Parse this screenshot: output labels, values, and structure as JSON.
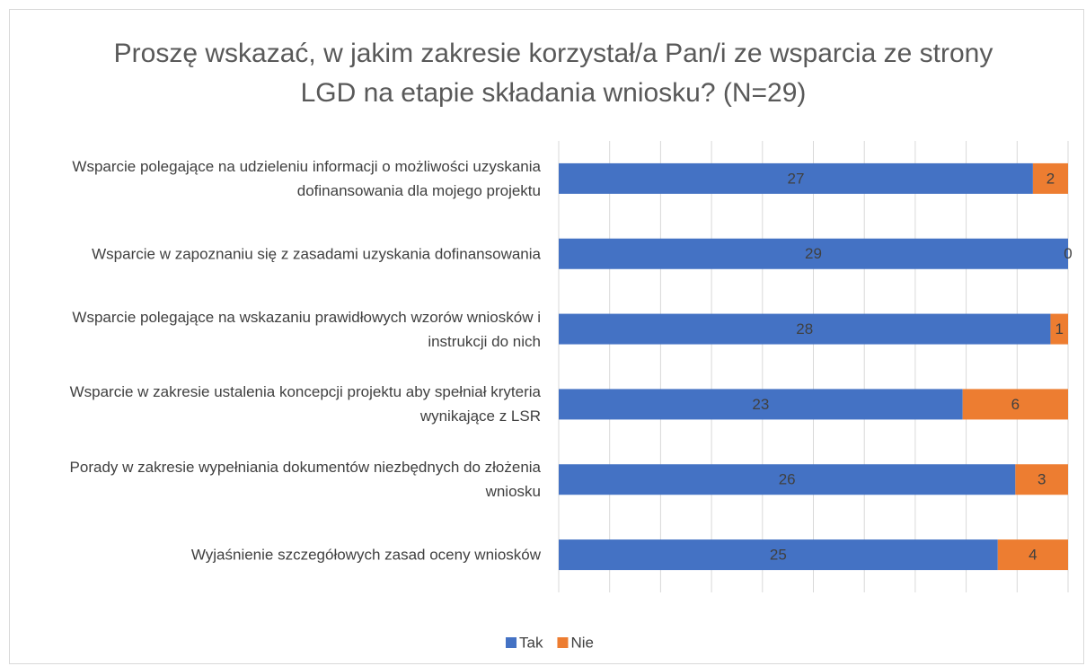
{
  "chart_data": {
    "type": "bar",
    "orientation": "horizontal",
    "stacking": "percent",
    "title": "Proszę wskazać, w jakim zakresie korzystał/a Pan/i ze wsparcia ze strony LGD na etapie składania wniosku? (N=29)",
    "categories": [
      "Wsparcie polegające na udzieleniu informacji o możliwości uzyskania dofinansowania dla mojego projektu",
      "Wsparcie w zapoznaniu się z zasadami uzyskania dofinansowania",
      "Wsparcie polegające na wskazaniu prawidłowych wzorów wniosków i instrukcji do nich",
      "Wsparcie w zakresie ustalenia koncepcji projektu aby spełniał kryteria wynikające z LSR",
      "Porady w zakresie wypełniania dokumentów niezbędnych do złożenia wniosku",
      "Wyjaśnienie szczegółowych zasad oceny wniosków"
    ],
    "series": [
      {
        "name": "Tak",
        "color": "#4472c4",
        "values": [
          27,
          29,
          28,
          23,
          26,
          25
        ]
      },
      {
        "name": "Nie",
        "color": "#ed7d31",
        "values": [
          2,
          0,
          1,
          6,
          3,
          4
        ]
      }
    ],
    "xlim": [
      0,
      100
    ],
    "xticks": [
      0,
      10,
      20,
      30,
      40,
      50,
      60,
      70,
      80,
      90,
      100
    ],
    "grid": true,
    "legend": "bottom"
  }
}
